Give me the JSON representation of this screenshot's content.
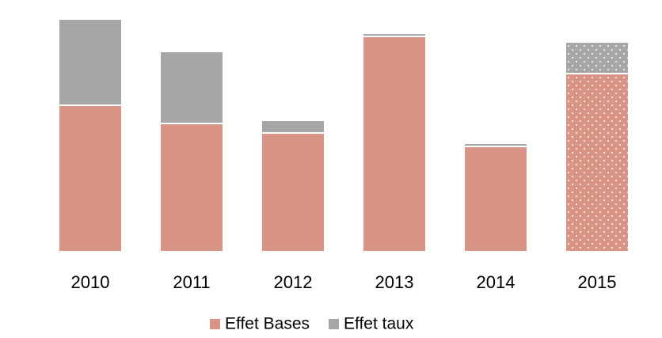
{
  "chart_data": {
    "type": "stacked_bar",
    "categories": [
      "2010",
      "2011",
      "2012",
      "2013",
      "2014",
      "2015"
    ],
    "series": [
      {
        "name": "Effet Bases",
        "color": "#d99485",
        "values": [
          185,
          162,
          150,
          272,
          133,
          225
        ]
      },
      {
        "name": "Effet taux",
        "color": "#a6a6a6",
        "values": [
          109,
          91,
          16,
          4,
          4,
          40
        ]
      }
    ],
    "patterned": [
      false,
      false,
      false,
      false,
      false,
      true
    ],
    "legend": "bottom"
  }
}
